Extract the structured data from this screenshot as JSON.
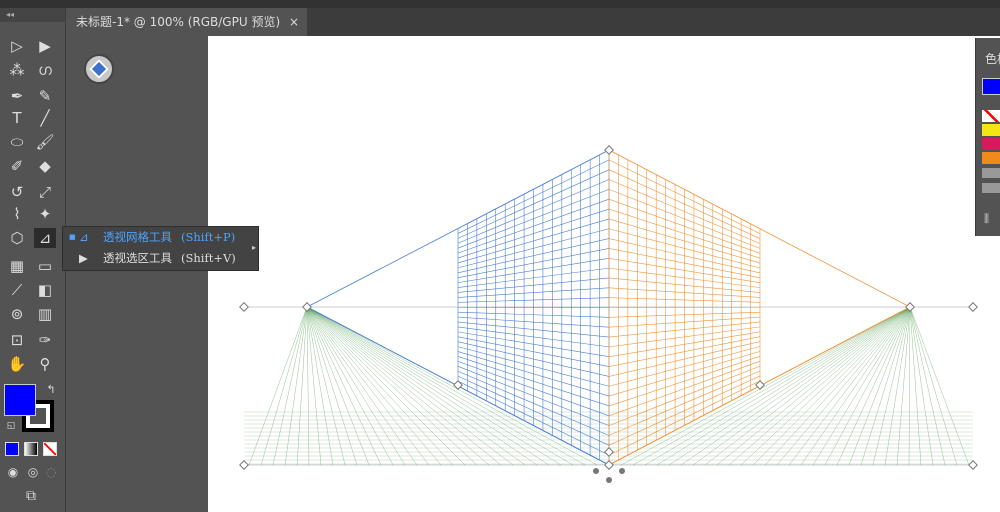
{
  "document_tab": {
    "title": "未标题-1* @ 100% (RGB/GPU 预览)",
    "close": "×"
  },
  "toolbar": {
    "collapse": "◂◂"
  },
  "flyout": {
    "items": [
      {
        "label": "透视网格工具",
        "shortcut": "(Shift+P)",
        "active": true
      },
      {
        "label": "透视选区工具",
        "shortcut": "(Shift+V)",
        "active": false
      }
    ]
  },
  "color_panel": {
    "title": "色板",
    "fill_color": "#0000ff"
  },
  "colors": {
    "left_grid": "#4a7fd6",
    "right_grid": "#f0943a",
    "ground_grid": "#4c9a4c",
    "fill": "#0000ff"
  }
}
